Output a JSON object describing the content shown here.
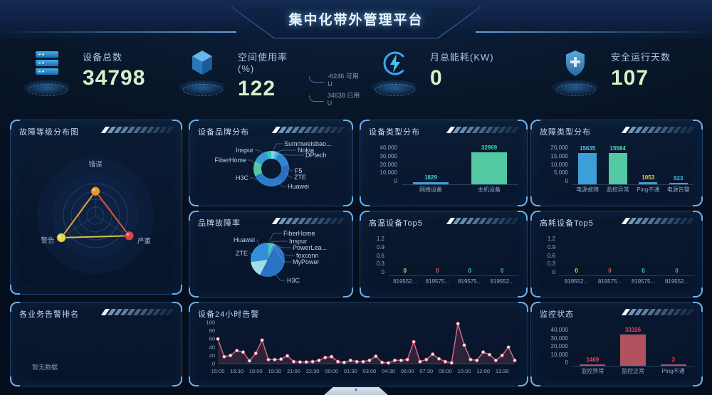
{
  "title": "集中化带外管理平台",
  "kpis": [
    {
      "icon": "server-icon",
      "label": "设备总数",
      "value": "34798"
    },
    {
      "icon": "cube-icon",
      "label": "空间使用率(%)",
      "value": "122",
      "annotations": [
        {
          "text": "-6246 可用U"
        },
        {
          "text": "34638 已用U"
        }
      ]
    },
    {
      "icon": "energy-icon",
      "label": "月总能耗(KW)",
      "value": "0"
    },
    {
      "icon": "shield-icon",
      "label": "安全运行天数",
      "value": "107"
    }
  ],
  "panels": {
    "fault_level": {
      "title": "故障等级分布图"
    },
    "device_brand": {
      "title": "设备品牌分布"
    },
    "brand_fault": {
      "title": "品牌故障率"
    },
    "device_type": {
      "title": "设备类型分布"
    },
    "fault_type": {
      "title": "故障类型分布"
    },
    "high_temp": {
      "title": "高温设备Top5"
    },
    "high_power": {
      "title": "高耗设备Top5"
    },
    "biz_rank": {
      "title": "各业务告警排名",
      "empty_text": "暂无数据"
    },
    "alarm_24h": {
      "title": "设备24小时告警"
    },
    "monitor": {
      "title": "监控状态"
    }
  },
  "footer": {
    "collapse_icon": "▼"
  },
  "colors": {
    "accent_blue": "#3d9fd8",
    "accent_green": "#52c9a2",
    "accent_red": "#e34d5b",
    "line_pink": "#e06a85"
  },
  "chart_data": [
    {
      "id": "fault_level",
      "type": "radar",
      "axes": [
        "错误",
        "警告",
        "严重"
      ],
      "series": [
        {
          "name": "故障等级",
          "values": [
            0.6,
            1.0,
            0.97
          ]
        }
      ],
      "point_colors": [
        "#e8962e",
        "#e0d84e",
        "#d84545"
      ],
      "edge_colors": [
        "#e8a23c",
        "#ddbf3f",
        "#e05530"
      ]
    },
    {
      "id": "device_brand",
      "type": "pie",
      "donut": true,
      "slices": [
        {
          "name": "Summweisbao...",
          "frac": 0.04,
          "color": "#7fd3f0"
        },
        {
          "name": "Nokia",
          "frac": 0.02,
          "color": "#56b8ec"
        },
        {
          "name": "DPtech",
          "frac": 0.02,
          "color": "#3fa8e0"
        },
        {
          "name": "F5",
          "frac": 0.14,
          "color": "#2f86d0"
        },
        {
          "name": "ZTE",
          "frac": 0.16,
          "color": "#2a6fc0"
        },
        {
          "name": "Huawei",
          "frac": 0.3,
          "color": "#2d7ccb"
        },
        {
          "name": "H3C",
          "frac": 0.14,
          "color": "#52c9a2"
        },
        {
          "name": "FiberHome",
          "frac": 0.13,
          "color": "#3a9ad8"
        },
        {
          "name": "Inspur",
          "frac": 0.05,
          "color": "#35c4b8"
        }
      ]
    },
    {
      "id": "brand_fault",
      "type": "pie",
      "donut": false,
      "slices": [
        {
          "name": "FiberHome",
          "frac": 0.015,
          "color": "#49b4e4"
        },
        {
          "name": "Inspur",
          "frac": 0.025,
          "color": "#3ecf9f"
        },
        {
          "name": "PowerLea...",
          "frac": 0.01,
          "color": "#8fd8f0"
        },
        {
          "name": "foxconn",
          "frac": 0.01,
          "color": "#2fc0b0"
        },
        {
          "name": "MyPower",
          "frac": 0.015,
          "color": "#56a8e0"
        },
        {
          "name": "H3C",
          "frac": 0.5,
          "color": "#2a72c4"
        },
        {
          "name": "ZTE",
          "frac": 0.155,
          "color": "#a4dce8"
        },
        {
          "name": "Huawei",
          "frac": 0.27,
          "color": "#3390d8"
        }
      ]
    },
    {
      "id": "device_type",
      "type": "bar",
      "categories": [
        "网络设备",
        "主机设备"
      ],
      "values": [
        1829,
        32969
      ],
      "ymax": 40000,
      "yticks": [
        "40,000",
        "30,000",
        "20,000",
        "10,000",
        "0"
      ],
      "bar_colors": [
        "#3d9fd8",
        "#52c9a2"
      ],
      "value_colors": [
        "#3fd0d8",
        "#2fe0b8"
      ]
    },
    {
      "id": "fault_type",
      "type": "bar",
      "categories": [
        "电源故障",
        "监控异常",
        "Ping不通",
        "电源告警"
      ],
      "values": [
        15635,
        15584,
        1053,
        823
      ],
      "ymax": 20000,
      "yticks": [
        "20,000",
        "15,000",
        "10,000",
        "5,000",
        "0"
      ],
      "bar_colors": [
        "#3d9fd8",
        "#52c9a2",
        "#3d9fd8",
        "#3d9fd8"
      ],
      "value_colors": [
        "#4fc3e8",
        "#4ee0b0",
        "#e8d44a",
        "#4fa8e8"
      ]
    },
    {
      "id": "high_temp",
      "type": "bar",
      "categories": [
        "819552...",
        "819575...",
        "819575...",
        "819552..."
      ],
      "values": [
        0,
        0,
        0,
        0
      ],
      "ymax": 1.2,
      "yticks": [
        "1.2",
        "0.9",
        "0.6",
        "0.3",
        "0"
      ],
      "bar_colors": [
        "#e8d44a",
        "#e85a5a",
        "#42d8a8",
        "#4aa8e8"
      ],
      "value_colors": [
        "#e8d44a",
        "#e85a5a",
        "#42d8a8",
        "#4aa8e8"
      ]
    },
    {
      "id": "high_power",
      "type": "bar",
      "categories": [
        "819552...",
        "819575...",
        "819575...",
        "819552..."
      ],
      "values": [
        0,
        0,
        0,
        0
      ],
      "ymax": 1.2,
      "yticks": [
        "1.2",
        "0.9",
        "0.6",
        "0.3",
        "0"
      ],
      "bar_colors": [
        "#e8d44a",
        "#e85a5a",
        "#42d8a8",
        "#4aa8e8"
      ],
      "value_colors": [
        "#e8d44a",
        "#e85a5a",
        "#42d8a8",
        "#4aa8e8"
      ]
    },
    {
      "id": "alarm_24h",
      "type": "line",
      "color": "#e06a85",
      "ymax": 100,
      "yticks": [
        0,
        20,
        40,
        60,
        80,
        100
      ],
      "xticks": [
        "15:00",
        "16:30",
        "18:00",
        "19:30",
        "21:00",
        "22:30",
        "00:00",
        "01:30",
        "03:00",
        "04:30",
        "06:00",
        "07:30",
        "09:00",
        "10:30",
        "12:00",
        "13:30"
      ],
      "values": [
        60,
        17,
        20,
        32,
        28,
        7,
        25,
        57,
        10,
        10,
        11,
        19,
        5,
        4,
        4,
        5,
        8,
        15,
        17,
        5,
        3,
        8,
        5,
        5,
        8,
        18,
        3,
        2,
        8,
        8,
        10,
        53,
        5,
        10,
        23,
        12,
        5,
        2,
        97,
        45,
        10,
        8,
        28,
        22,
        8,
        20,
        40,
        8
      ]
    },
    {
      "id": "monitor",
      "type": "bar",
      "categories": [
        "监控异常",
        "监控正常",
        "Ping不通"
      ],
      "values": [
        1469,
        33326,
        3
      ],
      "ymax": 40000,
      "yticks": [
        "40,000",
        "30,000",
        "20,000",
        "10,000",
        "0"
      ],
      "bar_colors": [
        "#b2525f",
        "#b2525f",
        "#b2525f"
      ],
      "value_colors": [
        "#e34d5b",
        "#e34d5b",
        "#e34d5b"
      ]
    }
  ]
}
